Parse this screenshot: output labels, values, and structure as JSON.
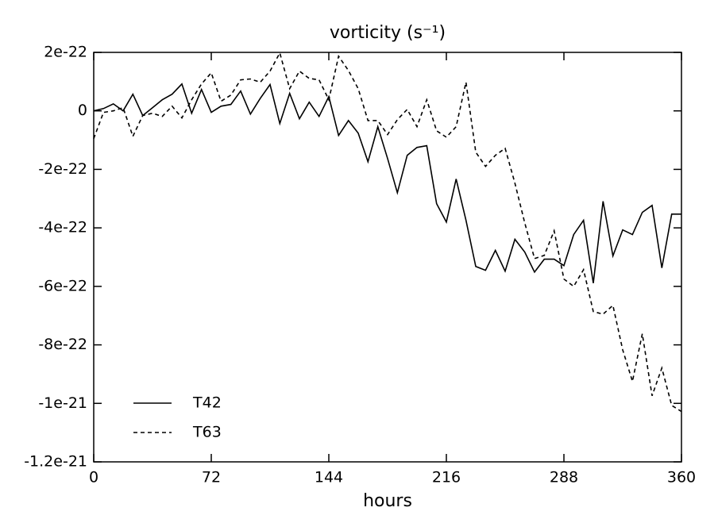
{
  "chart_data": {
    "type": "line",
    "title": "vorticity (s⁻¹)",
    "x_label": "hours",
    "x": [
      0,
      6,
      12,
      18,
      24,
      30,
      36,
      42,
      48,
      54,
      60,
      66,
      72,
      78,
      84,
      90,
      96,
      102,
      108,
      114,
      120,
      126,
      132,
      138,
      144,
      150,
      156,
      162,
      168,
      174,
      180,
      186,
      192,
      198,
      204,
      210,
      216,
      222,
      228,
      234,
      240,
      246,
      252,
      258,
      264,
      270,
      276,
      282,
      288,
      294,
      300,
      306,
      312,
      318,
      324,
      330,
      336,
      342,
      348,
      354,
      360
    ],
    "series": [
      {
        "name": "T42",
        "color": "#000000",
        "linestyle": "solid",
        "values": [
          0,
          8e-24,
          2.4e-23,
          0,
          5.7e-23,
          -1.6e-23,
          1.1e-23,
          3.8e-23,
          5.7e-23,
          9.2e-23,
          -8e-24,
          7.3e-23,
          -5e-24,
          1.6e-23,
          2.2e-23,
          6.8e-23,
          -1.1e-23,
          4.3e-23,
          9e-23,
          -4.3e-23,
          6e-23,
          -2.7e-23,
          3e-23,
          -1.9e-23,
          4.9e-23,
          -8.4e-23,
          -3.3e-23,
          -7.6e-23,
          -1.74e-22,
          -5.4e-23,
          -1.63e-22,
          -2.8e-22,
          -1.52e-22,
          -1.25e-22,
          -1.19e-22,
          -3.17e-22,
          -3.8e-22,
          -2.33e-22,
          -3.74e-22,
          -5.32e-22,
          -5.45e-22,
          -4.77e-22,
          -5.48e-22,
          -4.39e-22,
          -4.83e-22,
          -5.51e-22,
          -5.07e-22,
          -5.07e-22,
          -5.29e-22,
          -4.23e-22,
          -3.74e-22,
          -5.89e-22,
          -3.09e-22,
          -4.96e-22,
          -4.07e-22,
          -4.23e-22,
          -3.47e-22,
          -3.23e-22,
          -5.37e-22,
          -3.53e-22,
          -3.53e-22
        ]
      },
      {
        "name": "T63",
        "color": "#000000",
        "linestyle": "dashed",
        "values": [
          -9.5e-23,
          -5e-24,
          0,
          1.1e-23,
          -8.7e-23,
          -1.6e-23,
          -8e-24,
          -1.9e-23,
          1.6e-23,
          -2.4e-23,
          3.8e-23,
          9.2e-23,
          1.3e-22,
          3.3e-23,
          5.4e-23,
          1.06e-22,
          1.09e-22,
          9.8e-23,
          1.36e-22,
          1.98e-22,
          7.6e-23,
          1.36e-22,
          1.11e-22,
          1.06e-22,
          3.8e-23,
          1.87e-22,
          1.38e-22,
          7.6e-23,
          -3.3e-23,
          -3.3e-23,
          -8.1e-23,
          -3e-23,
          5e-24,
          -5.4e-23,
          3.8e-23,
          -6.8e-23,
          -9e-23,
          -5.4e-23,
          9.8e-23,
          -1.41e-22,
          -1.9e-22,
          -1.52e-22,
          -1.28e-22,
          -2.47e-22,
          -3.83e-22,
          -5.05e-22,
          -4.94e-22,
          -4.1e-22,
          -5.75e-22,
          -6e-22,
          -5.43e-22,
          -6.86e-22,
          -6.95e-22,
          -6.65e-22,
          -8.17e-22,
          -9.25e-22,
          -7.62e-22,
          -9.74e-22,
          -8.79e-22,
          -1.007e-21,
          -1.028e-21
        ]
      }
    ],
    "xlim": [
      0,
      360
    ],
    "xticks": [
      0,
      72,
      144,
      216,
      288,
      360
    ],
    "ylim": [
      -1.2e-21,
      2e-22
    ],
    "yticks": [
      2e-22,
      0,
      -2e-22,
      -4e-22,
      -6e-22,
      -8e-22,
      -1e-21,
      -1.2e-21
    ],
    "legend": "lower left",
    "grid": false
  }
}
